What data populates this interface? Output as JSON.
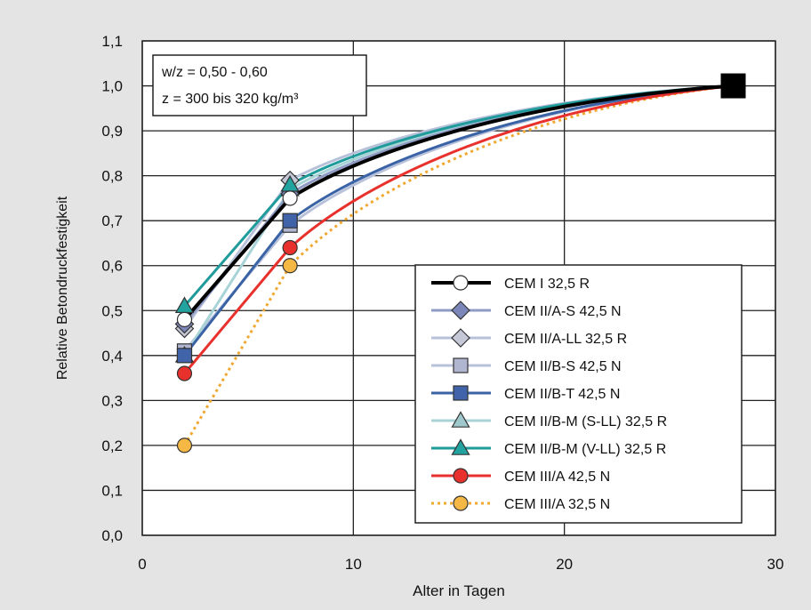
{
  "chart_data": {
    "type": "line",
    "xlabel": "Alter in Tagen",
    "ylabel": "Relative Betondruckfestigkeit",
    "xlim": [
      0,
      30
    ],
    "ylim": [
      0.0,
      1.1
    ],
    "x_ticks": [
      "0",
      "10",
      "20",
      "30"
    ],
    "y_ticks": [
      "0,0",
      "0,1",
      "0,2",
      "0,3",
      "0,4",
      "0,5",
      "0,6",
      "0,7",
      "0,8",
      "0,9",
      "1,0",
      "1,1"
    ],
    "grid": true,
    "legend_position": "bottom-right",
    "annotation": [
      "w/z = 0,50 - 0,60",
      "z = 300 bis 320 kg/m³"
    ],
    "series": [
      {
        "name": "CEM I 32,5 R",
        "x": [
          2,
          7,
          28
        ],
        "y": [
          0.48,
          0.75,
          1.0
        ],
        "color": "#000000",
        "marker": "circle",
        "fill": "#ffffff",
        "dash": false
      },
      {
        "name": "CEM II/A-S 42,5 N",
        "x": [
          2,
          7,
          28
        ],
        "y": [
          0.47,
          0.76,
          1.0
        ],
        "color": "#8f9bc4",
        "marker": "diamond",
        "fill": "#7d86b8",
        "dash": false
      },
      {
        "name": "CEM II/A-LL 32,5 R",
        "x": [
          2,
          7,
          28
        ],
        "y": [
          0.46,
          0.79,
          1.0
        ],
        "color": "#b8c1da",
        "marker": "diamond",
        "fill": "#c5c8d6",
        "dash": false
      },
      {
        "name": "CEM II/B-S 42,5 N",
        "x": [
          2,
          7,
          28
        ],
        "y": [
          0.41,
          0.69,
          1.0
        ],
        "color": "#b8c1da",
        "marker": "square",
        "fill": "#b0b6d0",
        "dash": false
      },
      {
        "name": "CEM II/B-T 42,5 N",
        "x": [
          2,
          7,
          28
        ],
        "y": [
          0.4,
          0.7,
          1.0
        ],
        "color": "#3a63a6",
        "marker": "square",
        "fill": "#4063aa",
        "dash": false
      },
      {
        "name": "CEM II/B-M (S-LL) 32,5 R",
        "x": [
          2,
          7,
          28
        ],
        "y": [
          0.4,
          0.77,
          1.0
        ],
        "color": "#a8d3d7",
        "marker": "triangle",
        "fill": "#9fc8cc",
        "dash": false
      },
      {
        "name": "CEM II/B-M (V-LL) 32,5 R",
        "x": [
          2,
          7,
          28
        ],
        "y": [
          0.51,
          0.78,
          1.0
        ],
        "color": "#1f9b9b",
        "marker": "triangle",
        "fill": "#23a3a0",
        "dash": false
      },
      {
        "name": "CEM III/A 42,5 N",
        "x": [
          2,
          7,
          28
        ],
        "y": [
          0.36,
          0.64,
          1.0
        ],
        "color": "#e8302c",
        "marker": "circle",
        "fill": "#e8302c",
        "dash": false
      },
      {
        "name": "CEM III/A 32,5 N",
        "x": [
          2,
          7,
          28
        ],
        "y": [
          0.2,
          0.6,
          1.0
        ],
        "color": "#f0a830",
        "marker": "circle",
        "fill": "#f5b845",
        "dash": true
      }
    ],
    "endpoint": {
      "x": 28,
      "y": 1.0
    }
  }
}
